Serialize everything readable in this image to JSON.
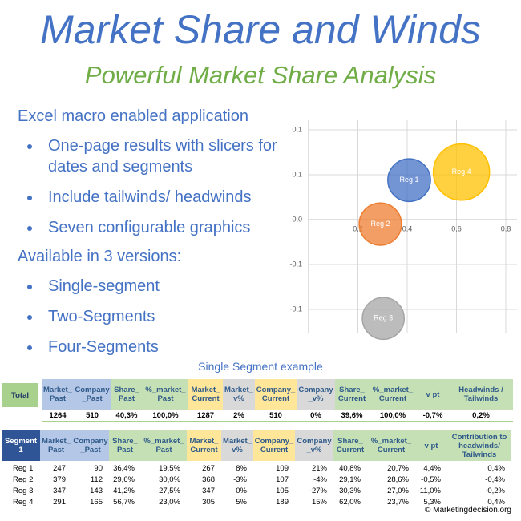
{
  "header": {
    "title": "Market Share and Winds",
    "subtitle": "Powerful Market Share Analysis"
  },
  "features": {
    "intro": "Excel macro enabled application",
    "items": [
      "One-page results with slicers for dates and segments",
      "Include tailwinds/ headwinds",
      "Seven configurable graphics"
    ]
  },
  "versions": {
    "intro": "Available in 3 versions:",
    "items": [
      "Single-segment",
      "Two-Segments",
      "Four-Segments"
    ]
  },
  "chart_data": {
    "type": "bubble",
    "series": [
      {
        "name": "Reg 1",
        "color": "#4472c4",
        "x": [
          0.408
        ],
        "values": [
          0.044
        ],
        "sizes": [
          109
        ]
      },
      {
        "name": "Reg 2",
        "color": "#ed7d31",
        "x": [
          0.291
        ],
        "values": [
          -0.005
        ],
        "sizes": [
          107
        ]
      },
      {
        "name": "Reg 3",
        "color": "#a5a5a5",
        "x": [
          0.303
        ],
        "values": [
          -0.11
        ],
        "sizes": [
          105
        ]
      },
      {
        "name": "Reg 4",
        "color": "#ffc000",
        "x": [
          0.62
        ],
        "values": [
          0.053
        ],
        "sizes": [
          189
        ]
      }
    ],
    "xlim": [
      0,
      0.8
    ],
    "xticks": [
      {
        "value": 0.2,
        "label": "0,2"
      },
      {
        "value": 0.4,
        "label": "0,4"
      },
      {
        "value": 0.6,
        "label": "0,6"
      },
      {
        "value": 0.8,
        "label": "0,8"
      }
    ],
    "ylim": [
      -0.125,
      0.125
    ],
    "yticks": [
      {
        "value": 0.1,
        "label": "0,1"
      },
      {
        "value": 0.05,
        "label": "0,1"
      },
      {
        "value": 0,
        "label": "0,0"
      },
      {
        "value": -0.05,
        "label": "-0,1"
      },
      {
        "value": -0.1,
        "label": "-0,1"
      }
    ],
    "grid": true
  },
  "example_caption": "Single Segment example",
  "column_colors": [
    "#b4c7e7",
    "#b4c7e7",
    "#c5e0b4",
    "#c5e0b4",
    "#ffe699",
    "#d9d9d9",
    "#ffe699",
    "#d9d9d9",
    "#c5e0b4",
    "#c5e0b4",
    "#c5e0b4",
    "#c5e0b4"
  ],
  "total_table": {
    "label": "Total",
    "columns": [
      "Market_ Past",
      "Company _Past",
      "Share_ Past",
      "%_market_ Past",
      "Market_ Current",
      "Market_ v%",
      "Company_ Current",
      "Company _v%",
      "Share_ Current",
      "%_market_ Current",
      "v pt",
      "Headwinds / Tailwinds"
    ],
    "rows": [
      [
        "1264",
        "510",
        "40,3%",
        "100,0%",
        "1287",
        "2%",
        "510",
        "0%",
        "39,6%",
        "100,0%",
        "-0,7%",
        "0,2%"
      ]
    ]
  },
  "segment_table": {
    "label": "Segment 1",
    "columns": [
      "Market_ Past",
      "Company _Past",
      "Share_ Past",
      "%_market_ Past",
      "Market_ Current",
      "Market_ v%",
      "Company_ Current",
      "Company _v%",
      "Share_ Current",
      "%_market_ Current",
      "v pt",
      "Contribution to headwinds/ Tailwinds"
    ],
    "rows": [
      [
        "Reg 1",
        "247",
        "90",
        "36,4%",
        "19,5%",
        "267",
        "8%",
        "109",
        "21%",
        "40,8%",
        "20,7%",
        "4,4%",
        "0,4%"
      ],
      [
        "Reg 2",
        "379",
        "112",
        "29,6%",
        "30,0%",
        "368",
        "-3%",
        "107",
        "-4%",
        "29,1%",
        "28,6%",
        "-0,5%",
        "-0,4%"
      ],
      [
        "Reg 3",
        "347",
        "143",
        "41,2%",
        "27,5%",
        "347",
        "0%",
        "105",
        "-27%",
        "30,3%",
        "27,0%",
        "-11,0%",
        "-0,2%"
      ],
      [
        "Reg 4",
        "291",
        "165",
        "56,7%",
        "23,0%",
        "305",
        "5%",
        "189",
        "15%",
        "62,0%",
        "23,7%",
        "5,3%",
        "0,4%"
      ]
    ]
  },
  "footer": "© Marketingdecision.org"
}
